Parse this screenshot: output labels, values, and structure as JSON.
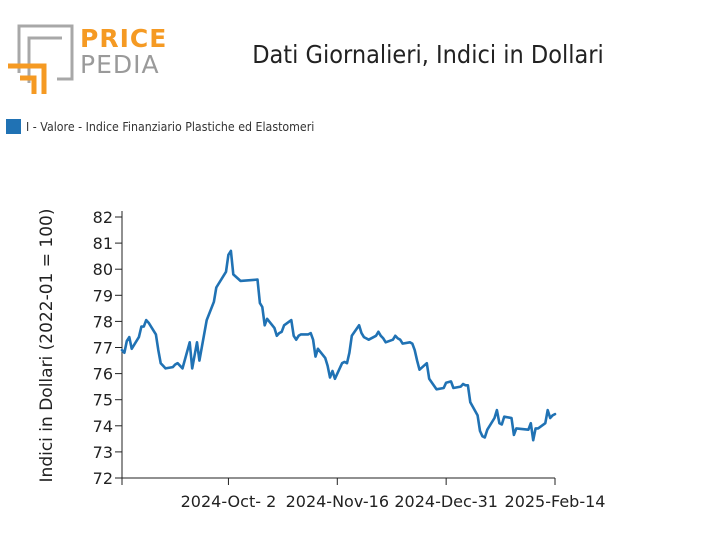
{
  "header": {
    "logo_top": "PRICE",
    "logo_bottom": "PEDIA",
    "title": "Dati Giornalieri, Indici in Dollari"
  },
  "colors": {
    "series": "#2072b4",
    "logo_orange": "#f59a23",
    "logo_gray": "#9a9a9a"
  },
  "chart_data": {
    "type": "line",
    "title": "Dati Giornalieri, Indici in Dollari",
    "xlabel": "",
    "ylabel": "Indici in Dollari (2022-01 = 100)",
    "ylim": [
      72,
      82
    ],
    "yticks": [
      72,
      73,
      74,
      75,
      76,
      77,
      78,
      79,
      80,
      81,
      82
    ],
    "x_range": [
      "2024-08-19",
      "2025-02-14"
    ],
    "x_tick_labels": [
      "2024-Oct- 2",
      "2024-Nov-16",
      "2024-Dec-31",
      "2025-Feb-14"
    ],
    "x_tick_dates": [
      "2024-10-02",
      "2024-11-16",
      "2024-12-31",
      "2025-02-14"
    ],
    "legend_position": "top-left",
    "grid": false,
    "series": [
      {
        "name": "I - Valore - Indice Finanziario Plastiche ed Elastomeri",
        "color": "#2072b4",
        "x": [
          "2024-08-19",
          "2024-08-20",
          "2024-08-21",
          "2024-08-22",
          "2024-08-23",
          "2024-08-26",
          "2024-08-27",
          "2024-08-28",
          "2024-08-29",
          "2024-08-30",
          "2024-09-02",
          "2024-09-03",
          "2024-09-04",
          "2024-09-05",
          "2024-09-06",
          "2024-09-09",
          "2024-09-10",
          "2024-09-11",
          "2024-09-12",
          "2024-09-13",
          "2024-09-16",
          "2024-09-17",
          "2024-09-18",
          "2024-09-19",
          "2024-09-20",
          "2024-09-23",
          "2024-09-26",
          "2024-09-27",
          "2024-09-30",
          "2024-10-01",
          "2024-10-02",
          "2024-10-03",
          "2024-10-04",
          "2024-10-07",
          "2024-10-14",
          "2024-10-15",
          "2024-10-16",
          "2024-10-17",
          "2024-10-18",
          "2024-10-21",
          "2024-10-22",
          "2024-10-23",
          "2024-10-24",
          "2024-10-25",
          "2024-10-28",
          "2024-10-29",
          "2024-10-30",
          "2024-10-31",
          "2024-11-01",
          "2024-11-04",
          "2024-11-05",
          "2024-11-06",
          "2024-11-07",
          "2024-11-08",
          "2024-11-11",
          "2024-11-12",
          "2024-11-13",
          "2024-11-14",
          "2024-11-15",
          "2024-11-18",
          "2024-11-19",
          "2024-11-20",
          "2024-11-21",
          "2024-11-22",
          "2024-11-25",
          "2024-11-26",
          "2024-11-27",
          "2024-11-28",
          "2024-11-29",
          "2024-12-02",
          "2024-12-03",
          "2024-12-04",
          "2024-12-05",
          "2024-12-06",
          "2024-12-09",
          "2024-12-10",
          "2024-12-11",
          "2024-12-12",
          "2024-12-13",
          "2024-12-16",
          "2024-12-17",
          "2024-12-18",
          "2024-12-19",
          "2024-12-20",
          "2024-12-23",
          "2024-12-24",
          "2024-12-27",
          "2024-12-30",
          "2024-12-31",
          "2025-01-02",
          "2025-01-03",
          "2025-01-06",
          "2025-01-07",
          "2025-01-08",
          "2025-01-09",
          "2025-01-10",
          "2025-01-13",
          "2025-01-14",
          "2025-01-15",
          "2025-01-16",
          "2025-01-17",
          "2025-01-20",
          "2025-01-21",
          "2025-01-22",
          "2025-01-23",
          "2025-01-24",
          "2025-01-27",
          "2025-01-28",
          "2025-01-29",
          "2025-02-03",
          "2025-02-04",
          "2025-02-05",
          "2025-02-06",
          "2025-02-07",
          "2025-02-10",
          "2025-02-11",
          "2025-02-12",
          "2025-02-13",
          "2025-02-14"
        ],
        "y": [
          76.9,
          76.8,
          77.25,
          77.4,
          76.95,
          77.4,
          77.8,
          77.8,
          78.05,
          77.95,
          77.5,
          76.9,
          76.4,
          76.3,
          76.2,
          76.25,
          76.35,
          76.4,
          76.3,
          76.2,
          77.2,
          76.2,
          76.7,
          77.2,
          76.5,
          78.05,
          78.75,
          79.3,
          79.75,
          79.9,
          80.55,
          80.7,
          79.8,
          79.55,
          79.6,
          78.7,
          78.55,
          77.85,
          78.1,
          77.75,
          77.45,
          77.55,
          77.6,
          77.85,
          78.05,
          77.45,
          77.3,
          77.45,
          77.5,
          77.5,
          77.55,
          77.3,
          76.65,
          76.95,
          76.6,
          76.3,
          75.85,
          76.1,
          75.8,
          76.4,
          76.45,
          76.4,
          76.8,
          77.45,
          77.85,
          77.55,
          77.4,
          77.35,
          77.3,
          77.45,
          77.6,
          77.45,
          77.35,
          77.2,
          77.3,
          77.45,
          77.35,
          77.3,
          77.15,
          77.2,
          77.15,
          76.9,
          76.5,
          76.15,
          76.4,
          75.8,
          75.4,
          75.45,
          75.65,
          75.7,
          75.45,
          75.5,
          75.6,
          75.55,
          75.55,
          74.9,
          74.4,
          73.8,
          73.6,
          73.55,
          73.85,
          74.3,
          74.6,
          74.1,
          74.05,
          74.35,
          74.3,
          73.65,
          73.9,
          73.85,
          74.1,
          73.45,
          73.9,
          73.9,
          74.1,
          74.6,
          74.3,
          74.4,
          74.45
        ]
      }
    ]
  }
}
